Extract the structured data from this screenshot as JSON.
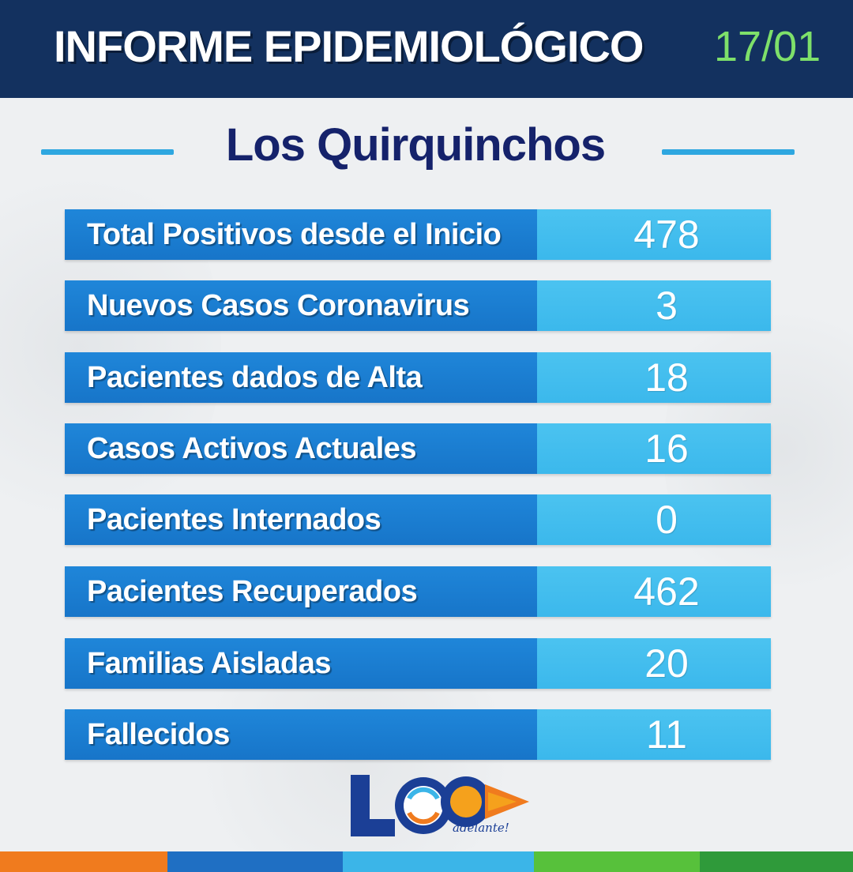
{
  "header": {
    "title": "INFORME EPIDEMIOLÓGICO",
    "date": "17/01"
  },
  "subtitle": "Los Quirquinchos",
  "stats": [
    {
      "label": "Total Positivos desde el Inicio",
      "value": "478"
    },
    {
      "label": "Nuevos Casos Coronavirus",
      "value": "3"
    },
    {
      "label": "Pacientes dados de Alta",
      "value": "18"
    },
    {
      "label": "Casos Activos Actuales",
      "value": "16"
    },
    {
      "label": "Pacientes Internados",
      "value": "0"
    },
    {
      "label": "Pacientes Recuperados",
      "value": "462"
    },
    {
      "label": "Familias Aisladas",
      "value": "20"
    },
    {
      "label": "Fallecidos",
      "value": "11"
    }
  ],
  "logo": {
    "text": "LQ",
    "slogan": "adelante!"
  },
  "colors": {
    "header_bg": "#13315f",
    "date_color": "#7ee06a",
    "subtitle_color": "#15226b",
    "label_bg": "#1f86d9",
    "value_bg": "#4bc3f0",
    "footer": [
      "#f07b1e",
      "#1f6fc3",
      "#3bb5e8",
      "#57c13b",
      "#2f9a3a"
    ]
  }
}
